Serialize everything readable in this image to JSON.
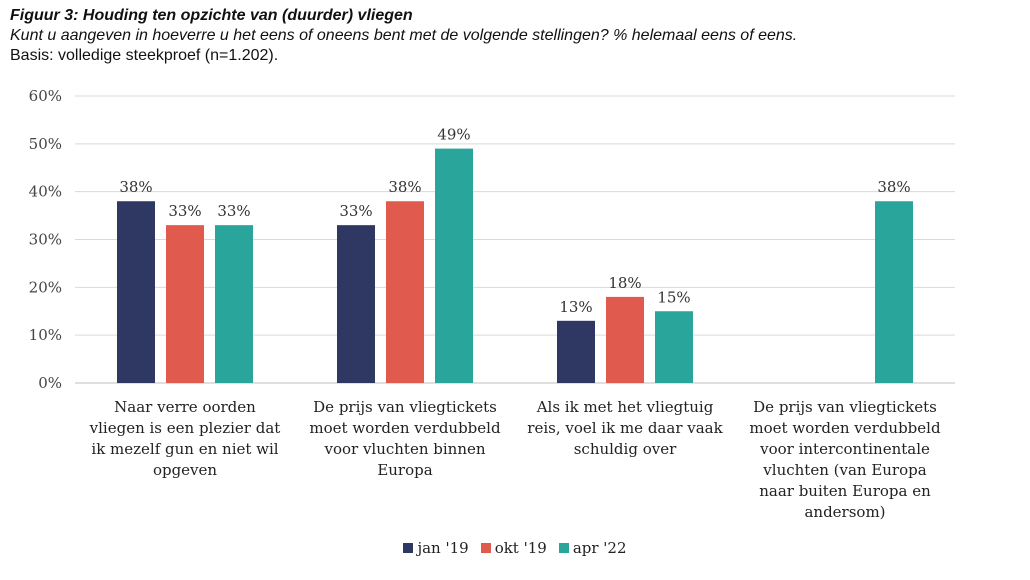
{
  "header": {
    "title": "Figuur 3: Houding ten opzichte van (duurder) vliegen",
    "subtitle": "Kunt u aangeven in hoeverre u het eens of oneens bent met de volgende stellingen? % helemaal eens of eens.",
    "base": "Basis: volledige steekproef (n=1.202)."
  },
  "colors": {
    "jan19": "#2f3763",
    "okt19": "#e05a4d",
    "apr22": "#2aa59b",
    "grid": "#d9d9d9",
    "axis_text": "#444444"
  },
  "chart_data": {
    "type": "bar",
    "title": "Houding ten opzichte van (duurder) vliegen",
    "xlabel": "",
    "ylabel": "",
    "ylim": [
      0,
      60
    ],
    "yticks": [
      "0%",
      "10%",
      "20%",
      "30%",
      "40%",
      "50%",
      "60%"
    ],
    "grid": true,
    "legend_position": "bottom",
    "categories": [
      "Naar verre oorden vliegen is een plezier dat ik mezelf gun en niet wil opgeven",
      "De prijs van vliegtickets moet worden verdubbeld voor vluchten binnen Europa",
      "Als ik met het vliegtuig reis, voel ik me daar vaak schuldig over",
      "De prijs van vliegtickets moet worden verdubbeld voor intercontinentale vluchten (van Europa naar buiten Europa en andersom)"
    ],
    "category_lines": [
      [
        "Naar verre oorden",
        "vliegen is een plezier dat",
        "ik mezelf gun en niet wil",
        "opgeven"
      ],
      [
        "De prijs van vliegtickets",
        "moet worden verdubbeld",
        "voor vluchten binnen",
        "Europa"
      ],
      [
        "Als ik met het vliegtuig",
        "reis, voel ik me daar vaak",
        "schuldig over"
      ],
      [
        "De prijs van vliegtickets",
        "moet worden verdubbeld",
        "voor intercontinentale",
        "vluchten (van Europa",
        "naar buiten Europa en",
        "andersom)"
      ]
    ],
    "series": [
      {
        "name": "jan '19",
        "values": [
          38,
          33,
          13,
          null
        ],
        "labels": [
          "38%",
          "33%",
          "13%",
          ""
        ]
      },
      {
        "name": "okt '19",
        "values": [
          33,
          38,
          18,
          null
        ],
        "labels": [
          "33%",
          "38%",
          "18%",
          ""
        ]
      },
      {
        "name": "apr '22",
        "values": [
          33,
          49,
          15,
          38
        ],
        "labels": [
          "33%",
          "49%",
          "15%",
          "38%"
        ]
      }
    ]
  }
}
